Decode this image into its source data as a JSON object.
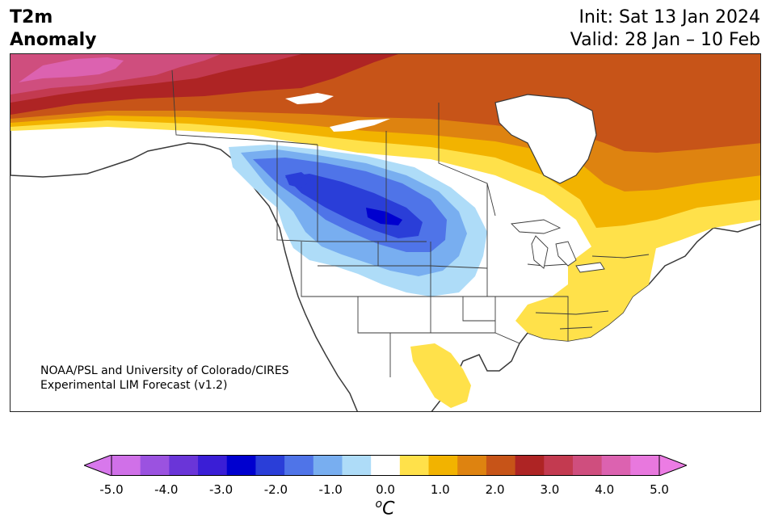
{
  "header": {
    "title_line1": "T2m",
    "title_line2": "Anomaly",
    "init": "Init: Sat 13 Jan 2024",
    "valid": "Valid: 28 Jan – 10 Feb"
  },
  "map": {
    "credit_line1": "NOAA/PSL and University of Colorado/CIRES",
    "credit_line2": "Experimental LIM Forecast (v1.2)"
  },
  "colorbar": {
    "levels": [
      -5.0,
      -4.5,
      -4.0,
      -3.5,
      -3.0,
      -2.5,
      -2.0,
      -1.5,
      -1.0,
      -0.5,
      0.5,
      1.0,
      1.5,
      2.0,
      2.5,
      3.0,
      3.5,
      4.0,
      4.5,
      5.0
    ],
    "colors": [
      "#d070e8",
      "#9b52e0",
      "#6a35d8",
      "#3a1ed6",
      "#0000cf",
      "#2a3ed8",
      "#4f74e8",
      "#78aef0",
      "#aedcf8",
      "#ffffff",
      "#ffe14a",
      "#f2b300",
      "#de8310",
      "#c75418",
      "#ae2424",
      "#c33a50",
      "#cf4e7e",
      "#dc62b0",
      "#e878de"
    ],
    "under_color": "#d878ec",
    "over_color": "#ec7ce4",
    "tick_labels": [
      "-5.0",
      "-4.0",
      "-3.0",
      "-2.0",
      "-1.0",
      "0.0",
      "1.0",
      "2.0",
      "3.0",
      "4.0",
      "5.0"
    ],
    "unit_symbol": "C",
    "unit_superscript": "o"
  }
}
